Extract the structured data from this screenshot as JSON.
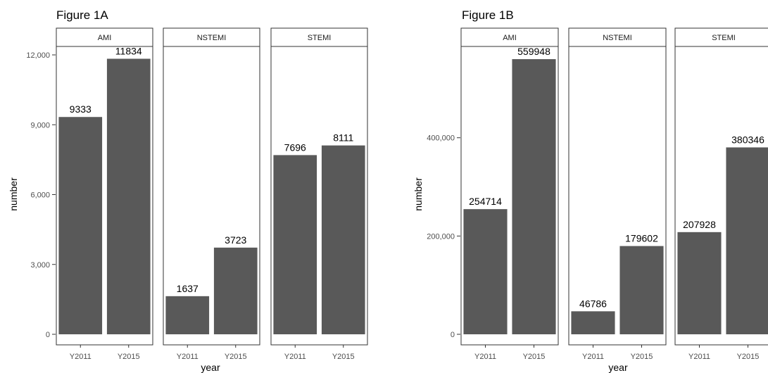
{
  "chart_data": [
    {
      "type": "bar",
      "title": "Figure 1A",
      "xlabel": "year",
      "ylabel": "number",
      "ylim": [
        0,
        12000
      ],
      "yticks": [
        0,
        3000,
        6000,
        9000,
        12000
      ],
      "ytick_labels": [
        "0",
        "3,000",
        "6,000",
        "9,000",
        "12,000"
      ],
      "categories": [
        "Y2011",
        "Y2015"
      ],
      "bar_color": "#595959",
      "panels": [
        {
          "name": "AMI",
          "values": [
            9333,
            11834
          ]
        },
        {
          "name": "NSTEMI",
          "values": [
            1637,
            3723
          ]
        },
        {
          "name": "STEMI",
          "values": [
            7696,
            8111
          ]
        }
      ],
      "grid": false
    },
    {
      "type": "bar",
      "title": "Figure 1B",
      "xlabel": "year",
      "ylabel": "number",
      "ylim": [
        0,
        560000
      ],
      "yticks": [
        0,
        200000,
        400000
      ],
      "ytick_labels": [
        "0",
        "200,000",
        "400,000"
      ],
      "categories": [
        "Y2011",
        "Y2015"
      ],
      "bar_color": "#595959",
      "panels": [
        {
          "name": "AMI",
          "values": [
            254714,
            559948
          ]
        },
        {
          "name": "NSTEMI",
          "values": [
            46786,
            179602
          ]
        },
        {
          "name": "STEMI",
          "values": [
            207928,
            380346
          ]
        }
      ],
      "grid": false
    }
  ]
}
